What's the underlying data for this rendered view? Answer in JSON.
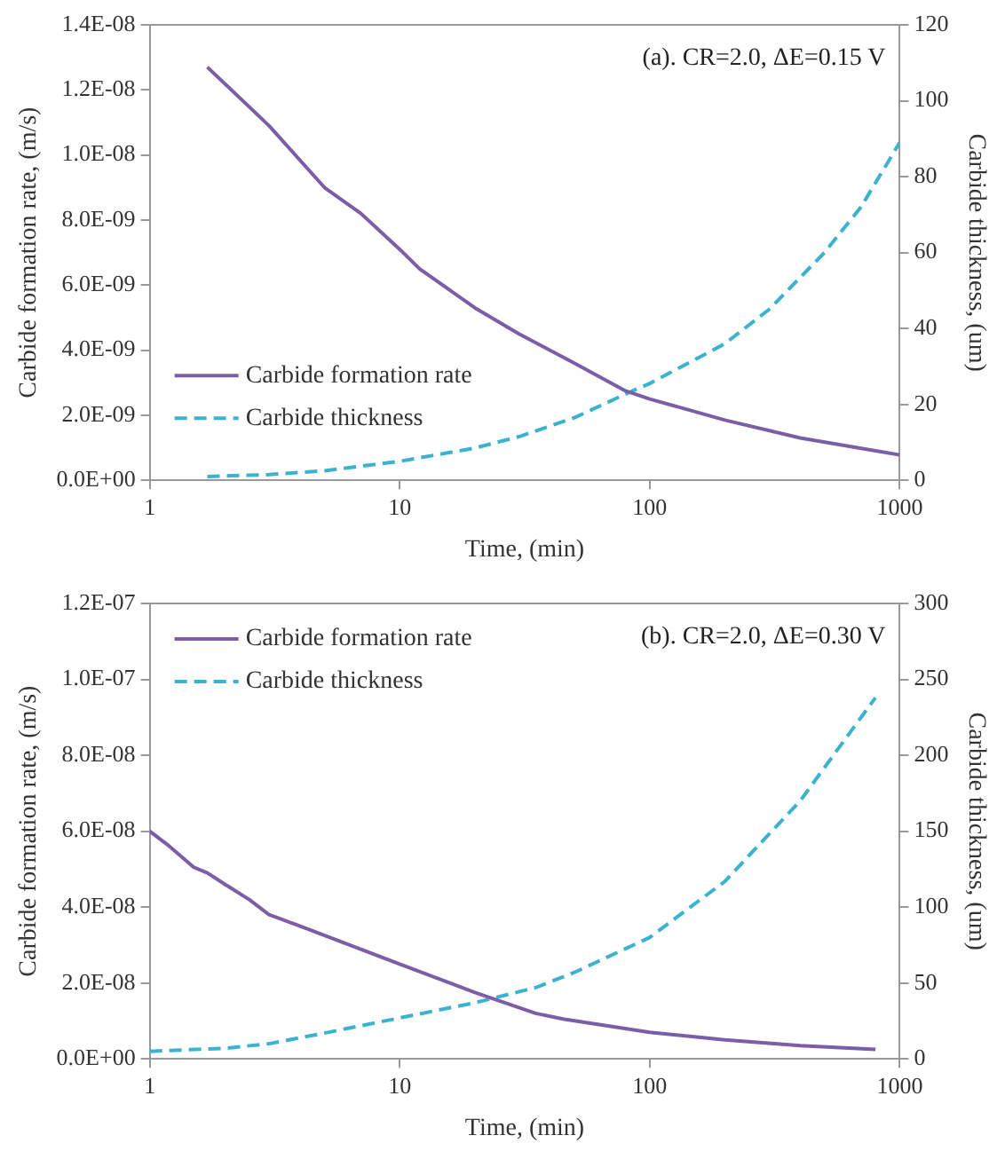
{
  "chart_data": [
    {
      "type": "line",
      "xlabel": "Time, (min)",
      "ylabel": "Carbide formation rate, (m/s)",
      "y2label": "Carbide thickness, (um)",
      "log": "x",
      "xlim": [
        1,
        1000
      ],
      "xticks": [
        1,
        10,
        100,
        1000
      ],
      "ylim": [
        0,
        1.4e-08
      ],
      "yticks": [
        {
          "value": 0,
          "label": "0.0E+00"
        },
        {
          "value": 2e-09,
          "label": "2.0E-09"
        },
        {
          "value": 4e-09,
          "label": "4.0E-09"
        },
        {
          "value": 6e-09,
          "label": "6.0E-09"
        },
        {
          "value": 8e-09,
          "label": "8.0E-09"
        },
        {
          "value": 1e-08,
          "label": "1.0E-08"
        },
        {
          "value": 1.2e-08,
          "label": "1.2E-08"
        },
        {
          "value": 1.4e-08,
          "label": "1.4E-08"
        }
      ],
      "y2lim": [
        0,
        120
      ],
      "y2ticks": [
        0,
        20,
        40,
        60,
        80,
        100,
        120
      ],
      "legend": "bottom left",
      "grid": false,
      "marker": "none",
      "annotations": [
        "(a). CR=2.0, ΔE=0.15 V"
      ],
      "series": [
        {
          "name": "Carbide formation rate",
          "color": "#7b5ea7",
          "line_style": "solid",
          "x": [
            1.7,
            3,
            5,
            7,
            10,
            12,
            20,
            30,
            50,
            80,
            100,
            200,
            400,
            1000
          ],
          "values": [
            1.27e-08,
            1.09e-08,
            9e-09,
            8.2e-09,
            7.1e-09,
            6.5e-09,
            5.3e-09,
            4.5e-09,
            3.6e-09,
            2.75e-09,
            2.5e-09,
            1.85e-09,
            1.3e-09,
            7.8e-10
          ]
        },
        {
          "name": "Carbide thickness",
          "color": "#3bb2d0",
          "line_style": "dashed",
          "axis": "y2",
          "x": [
            1.7,
            3,
            5,
            10,
            20,
            30,
            50,
            85,
            100,
            200,
            300,
            500,
            700,
            1000
          ],
          "values": [
            1,
            1.5,
            2.5,
            5,
            8.5,
            11.5,
            16.5,
            23.5,
            25.5,
            36,
            45,
            60,
            72,
            89
          ]
        }
      ]
    },
    {
      "type": "line",
      "xlabel": "Time, (min)",
      "ylabel": "Carbide formation rate, (m/s)",
      "y2label": "Carbide thickness, (um)",
      "log": "x",
      "xlim": [
        1,
        1000
      ],
      "xticks": [
        1,
        10,
        100,
        1000
      ],
      "ylim": [
        0,
        1.2e-07
      ],
      "yticks": [
        {
          "value": 0,
          "label": "0.0E+00"
        },
        {
          "value": 2e-08,
          "label": "2.0E-08"
        },
        {
          "value": 4e-08,
          "label": "4.0E-08"
        },
        {
          "value": 6e-08,
          "label": "6.0E-08"
        },
        {
          "value": 8e-08,
          "label": "8.0E-08"
        },
        {
          "value": 1e-07,
          "label": "1.0E-07"
        },
        {
          "value": 1.2e-07,
          "label": "1.2E-07"
        }
      ],
      "y2lim": [
        0,
        300
      ],
      "y2ticks": [
        0,
        50,
        100,
        150,
        200,
        250,
        300
      ],
      "legend": "top left",
      "grid": false,
      "marker": "none",
      "annotations": [
        "(b). CR=2.0, ΔE=0.30 V"
      ],
      "series": [
        {
          "name": "Carbide formation rate",
          "color": "#7b5ea7",
          "line_style": "solid",
          "x": [
            1,
            1.2,
            1.5,
            1.7,
            2,
            2.5,
            3,
            4,
            10,
            20,
            35,
            45,
            100,
            200,
            400,
            800
          ],
          "values": [
            6e-08,
            5.6e-08,
            5.05e-08,
            4.9e-08,
            4.6e-08,
            4.2e-08,
            3.8e-08,
            3.5e-08,
            2.5e-08,
            1.75e-08,
            1.2e-08,
            1.05e-08,
            7e-09,
            5e-09,
            3.5e-09,
            2.5e-09
          ]
        },
        {
          "name": "Carbide thickness",
          "color": "#3bb2d0",
          "line_style": "dashed",
          "axis": "y2",
          "x": [
            1,
            2,
            3,
            5,
            10,
            20,
            35,
            50,
            100,
            200,
            400,
            800
          ],
          "values": [
            5,
            7,
            10,
            17,
            27,
            37,
            47,
            57,
            80,
            117,
            170,
            238
          ]
        }
      ]
    }
  ]
}
